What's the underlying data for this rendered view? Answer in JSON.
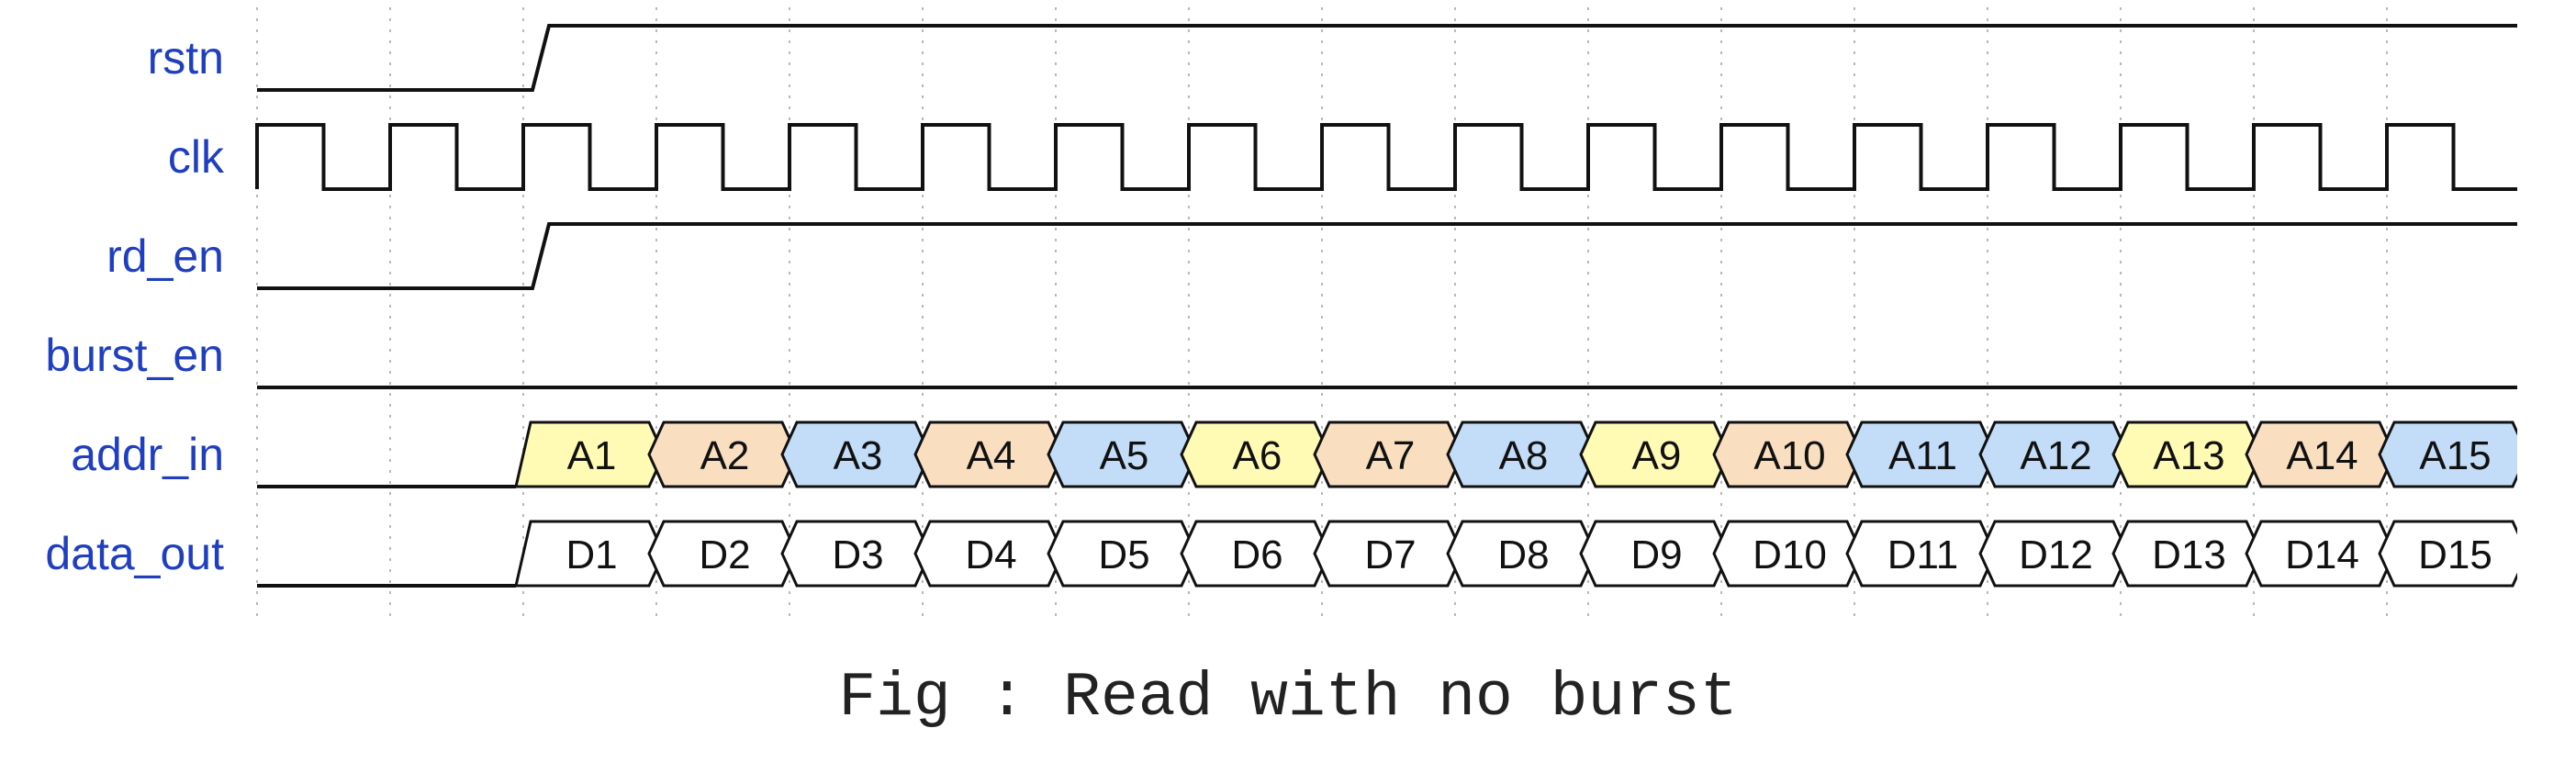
{
  "caption": "Fig : Read with no burst",
  "signals": [
    {
      "name": "rstn",
      "kind": "step",
      "initial": 0,
      "rise_at": 2
    },
    {
      "name": "clk",
      "kind": "clock"
    },
    {
      "name": "rd_en",
      "kind": "step",
      "initial": 0,
      "rise_at": 2
    },
    {
      "name": "burst_en",
      "kind": "const",
      "value": 0
    },
    {
      "name": "addr_in",
      "kind": "bus",
      "values": [
        "A1",
        "A2",
        "A3",
        "A4",
        "A5",
        "A6",
        "A7",
        "A8",
        "A9",
        "A10",
        "A11",
        "A12",
        "A13",
        "A14",
        "A15"
      ],
      "colors": [
        "yellow",
        "orange",
        "blue",
        "orange",
        "blue",
        "yellow",
        "orange",
        "blue",
        "yellow",
        "orange",
        "blue",
        "blue",
        "yellow",
        "orange",
        "blue"
      ]
    },
    {
      "name": "data_out",
      "kind": "bus",
      "values": [
        "D1",
        "D2",
        "D3",
        "D4",
        "D5",
        "D6",
        "D7",
        "D8",
        "D9",
        "D10",
        "D11",
        "D12",
        "D13",
        "D14",
        "D15"
      ],
      "colors": [
        "white",
        "white",
        "white",
        "white",
        "white",
        "white",
        "white",
        "white",
        "white",
        "white",
        "white",
        "white",
        "white",
        "white",
        "white"
      ]
    }
  ],
  "palette": {
    "yellow": "#fffbb5",
    "orange": "#f9dfc0",
    "blue": "#c3ddf8",
    "white": "#ffffff"
  },
  "line_color": "#111111",
  "grid_color": "#b9b9b9"
}
